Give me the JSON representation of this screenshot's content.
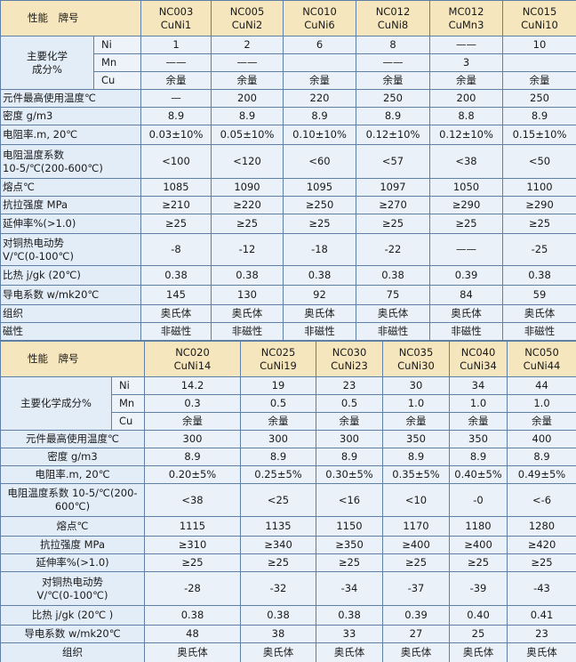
{
  "tables": [
    {
      "header": {
        "label": "性能　牌号",
        "columns": [
          {
            "code": "NC003",
            "alloy": "CuNi1"
          },
          {
            "code": "NC005",
            "alloy": "CuNi2"
          },
          {
            "code": "NC010",
            "alloy": "CuNi6"
          },
          {
            "code": "NC012",
            "alloy": "CuNi8"
          },
          {
            "code": "MC012",
            "alloy": "CuMn3"
          },
          {
            "code": "NC015",
            "alloy": "CuNi10"
          }
        ]
      },
      "composition": {
        "label": [
          "主要化学",
          "成分%"
        ],
        "rows": [
          {
            "element": "Ni",
            "cells": [
              "1",
              "2",
              "6",
              "8",
              "——",
              "10"
            ]
          },
          {
            "element": "Mn",
            "cells": [
              "——",
              "——",
              null,
              "——",
              "3",
              null
            ]
          },
          {
            "element": "Cu",
            "cells": [
              "余量",
              "余量",
              "余量",
              "余量",
              "余量",
              "余量"
            ]
          }
        ]
      },
      "properties": [
        {
          "label": [
            "元件最高使用温度℃"
          ],
          "cells": [
            "—",
            "200",
            "220",
            "250",
            "200",
            "250"
          ]
        },
        {
          "label": [
            "密度 g/m3"
          ],
          "cells": [
            "8.9",
            "8.9",
            "8.9",
            "8.9",
            "8.8",
            "8.9"
          ]
        },
        {
          "label": [
            "电阻率.m, 20℃"
          ],
          "cells": [
            "0.03±10%",
            "0.05±10%",
            "0.10±10%",
            "0.12±10%",
            "0.12±10%",
            "0.15±10%"
          ]
        },
        {
          "label": [
            "电阻温度系数",
            "10-5/℃(200-600℃)"
          ],
          "cells": [
            "<100",
            "<120",
            "<60",
            "<57",
            "<38",
            "<50"
          ]
        },
        {
          "label": [
            "熔点℃"
          ],
          "cells": [
            "1085",
            "1090",
            "1095",
            "1097",
            "1050",
            "1100"
          ]
        },
        {
          "label": [
            "抗拉强度 MPa"
          ],
          "cells": [
            "≥210",
            "≥220",
            "≥250",
            "≥270",
            "≥290",
            "≥290"
          ]
        },
        {
          "label": [
            "延伸率%(>1.0)"
          ],
          "cells": [
            "≥25",
            "≥25",
            "≥25",
            "≥25",
            "≥25",
            "≥25"
          ]
        },
        {
          "label": [
            "对铜热电动势",
            "V/℃(0-100℃)"
          ],
          "cells": [
            "-8",
            "-12",
            "-18",
            "-22",
            "——",
            "-25"
          ]
        },
        {
          "label": [
            "比热 j/gk (20℃)"
          ],
          "cells": [
            "0.38",
            "0.38",
            "0.38",
            "0.38",
            "0.39",
            "0.38"
          ]
        },
        {
          "label": [
            "导电系数 w/mk20℃"
          ],
          "cells": [
            "145",
            "130",
            "92",
            "75",
            "84",
            "59"
          ]
        },
        {
          "label": [
            "组织"
          ],
          "cells": [
            "奥氏体",
            "奥氏体",
            "奥氏体",
            "奥氏体",
            "奥氏体",
            "奥氏体"
          ]
        },
        {
          "label": [
            "磁性"
          ],
          "cells": [
            "非磁性",
            "非磁性",
            "非磁性",
            "非磁性",
            "非磁性",
            "非磁性"
          ]
        }
      ]
    },
    {
      "header": {
        "label": "性能　牌号",
        "columns": [
          {
            "code": "NC020",
            "alloy": "CuNi14"
          },
          {
            "code": "NC025",
            "alloy": "CuNi19"
          },
          {
            "code": "NC030",
            "alloy": "CuNi23"
          },
          {
            "code": "NC035",
            "alloy": "CuNi30"
          },
          {
            "code": "NC040",
            "alloy": "CuNi34"
          },
          {
            "code": "NC050",
            "alloy": "CuNi44"
          }
        ]
      },
      "composition": {
        "label": [
          "主要化学成分%"
        ],
        "rows": [
          {
            "element": "Ni",
            "cells": [
              "14.2",
              "19",
              "23",
              "30",
              "34",
              "44"
            ]
          },
          {
            "element": "Mn",
            "cells": [
              "0.3",
              "0.5",
              "0.5",
              "1.0",
              "1.0",
              "1.0"
            ]
          },
          {
            "element": "Cu",
            "cells": [
              "余量",
              "余量",
              "余量",
              "余量",
              "余量",
              "余量"
            ]
          }
        ]
      },
      "properties": [
        {
          "label": [
            "元件最高使用温度℃"
          ],
          "cells": [
            "300",
            "300",
            "300",
            "350",
            "350",
            "400"
          ]
        },
        {
          "label": [
            "密度 g/m3"
          ],
          "cells": [
            "8.9",
            "8.9",
            "8.9",
            "8.9",
            "8.9",
            "8.9"
          ]
        },
        {
          "label": [
            "电阻率.m, 20℃"
          ],
          "cells": [
            "0.20±5%",
            "0.25±5%",
            "0.30±5%",
            "0.35±5%",
            "0.40±5%",
            "0.49±5%"
          ]
        },
        {
          "label": [
            "电阻温度系数 10-5/℃(200-",
            "600℃)"
          ],
          "cells": [
            "<38",
            "<25",
            "<16",
            "<10",
            "-0",
            "<-6"
          ]
        },
        {
          "label": [
            "熔点℃"
          ],
          "cells": [
            "1115",
            "1135",
            "1150",
            "1170",
            "1180",
            "1280"
          ]
        },
        {
          "label": [
            "抗拉强度 MPa"
          ],
          "cells": [
            "≥310",
            "≥340",
            "≥350",
            "≥400",
            "≥400",
            "≥420"
          ]
        },
        {
          "label": [
            "延伸率%(>1.0)"
          ],
          "cells": [
            "≥25",
            "≥25",
            "≥25",
            "≥25",
            "≥25",
            "≥25"
          ]
        },
        {
          "label": [
            "对铜热电动势",
            "V/℃(0-100℃)"
          ],
          "cells": [
            "-28",
            "-32",
            "-34",
            "-37",
            "-39",
            "-43"
          ]
        },
        {
          "label": [
            "比热 j/gk (20℃ )"
          ],
          "cells": [
            "0.38",
            "0.38",
            "0.38",
            "0.39",
            "0.40",
            "0.41"
          ]
        },
        {
          "label": [
            "导电系数 w/mk20℃"
          ],
          "cells": [
            "48",
            "38",
            "33",
            "27",
            "25",
            "23"
          ]
        },
        {
          "label": [
            "组织"
          ],
          "cells": [
            "奥氏体",
            "奥氏体",
            "奥氏体",
            "奥氏体",
            "奥氏体",
            "奥氏体"
          ]
        }
      ]
    }
  ]
}
